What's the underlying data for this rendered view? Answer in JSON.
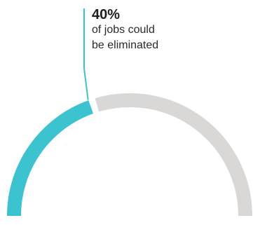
{
  "chart_data": {
    "type": "gauge",
    "value_percent": 40,
    "max_percent": 100,
    "annotation": {
      "value_label": "40%",
      "text_line_1": "of jobs could",
      "text_line_2": "be eliminated"
    },
    "colors": {
      "value_arc": "#3bc3cf",
      "remaining_arc": "#d9d8d6",
      "leader_line": "#3bc3cf",
      "text": "#1e1e1e"
    }
  }
}
